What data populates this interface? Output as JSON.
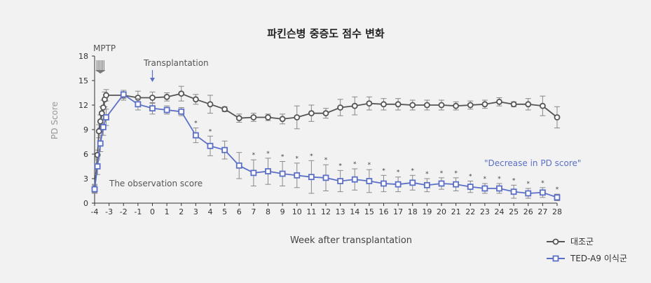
{
  "chart_data": {
    "type": "line",
    "title": "파킨슨병 중증도 점수 변화",
    "xlabel": "Week after transplantation",
    "ylabel": "PD Score",
    "ylim": [
      0,
      18
    ],
    "yticks": [
      0,
      3,
      6,
      9,
      12,
      15,
      18
    ],
    "xticks": [
      -4,
      -3,
      -2,
      -1,
      0,
      1,
      2,
      3,
      4,
      5,
      6,
      7,
      8,
      9,
      10,
      11,
      12,
      13,
      14,
      15,
      16,
      17,
      18,
      19,
      20,
      21,
      22,
      23,
      24,
      25,
      26,
      27,
      28
    ],
    "xlim": [
      -4,
      28
    ],
    "legend_position": "bottom-right",
    "annotations": {
      "mptp": "MPTP",
      "transplantation": "Transplantation",
      "observation": "The observation score",
      "decrease": "\"Decrease in PD score\""
    },
    "series": [
      {
        "name": "대조군",
        "color": "#555555",
        "marker": "circle",
        "x": [
          -4,
          -3.8,
          -3.7,
          -3.6,
          -3.5,
          -3.4,
          -3.3,
          -3.2,
          -2,
          -1,
          0,
          1,
          2,
          3,
          4,
          5,
          6,
          7,
          8,
          9,
          10,
          11,
          12,
          13,
          14,
          15,
          16,
          17,
          18,
          19,
          20,
          21,
          22,
          23,
          24,
          25,
          26,
          27,
          28
        ],
        "y": [
          1.8,
          5.9,
          8.8,
          10.0,
          11.0,
          11.7,
          12.7,
          13.2,
          13.2,
          12.9,
          12.9,
          13.0,
          13.4,
          12.7,
          12.1,
          11.5,
          10.4,
          10.5,
          10.5,
          10.3,
          10.5,
          11.0,
          11.0,
          11.7,
          11.9,
          12.2,
          12.1,
          12.1,
          12.0,
          12.0,
          12.0,
          11.9,
          12.0,
          12.1,
          12.4,
          12.1,
          12.1,
          11.9,
          10.5
        ],
        "err": [
          0.5,
          0.6,
          0.8,
          0.8,
          0.8,
          0.9,
          0.9,
          0.7,
          0.6,
          0.8,
          0.7,
          0.5,
          0.9,
          0.6,
          1.1,
          0.3,
          0.5,
          0.5,
          0.4,
          0.6,
          1.4,
          1.0,
          0.6,
          1.0,
          1.1,
          0.8,
          0.7,
          0.7,
          0.6,
          0.6,
          0.6,
          0.5,
          0.5,
          0.5,
          0.5,
          0.3,
          0.7,
          1.2,
          1.3
        ]
      },
      {
        "name": "TED-A9 이식군",
        "color": "#5b6fc7",
        "marker": "square",
        "x": [
          -4,
          -3.8,
          -3.6,
          -3.4,
          -3.2,
          -2,
          -1,
          0,
          1,
          2,
          3,
          4,
          5,
          6,
          7,
          8,
          9,
          10,
          11,
          12,
          13,
          14,
          15,
          16,
          17,
          18,
          19,
          20,
          21,
          22,
          23,
          24,
          25,
          26,
          27,
          28
        ],
        "y": [
          1.7,
          4.5,
          7.3,
          9.3,
          10.5,
          13.3,
          12.1,
          11.6,
          11.4,
          11.2,
          8.3,
          7.0,
          6.5,
          4.6,
          3.7,
          3.9,
          3.6,
          3.4,
          3.2,
          3.1,
          2.7,
          2.9,
          2.7,
          2.4,
          2.3,
          2.5,
          2.2,
          2.4,
          2.3,
          2.0,
          1.8,
          1.8,
          1.4,
          1.2,
          1.3,
          0.7
        ],
        "err": [
          0.5,
          1.0,
          1.0,
          1.0,
          1.0,
          0.5,
          0.7,
          0.7,
          0.5,
          0.5,
          0.9,
          1.2,
          1.1,
          1.6,
          1.6,
          1.6,
          1.5,
          1.5,
          2.0,
          1.6,
          1.3,
          1.3,
          1.4,
          1.0,
          0.9,
          0.9,
          0.8,
          0.7,
          0.8,
          0.7,
          0.6,
          0.6,
          0.8,
          0.6,
          0.6,
          0.4
        ],
        "significant_weeks": [
          3,
          4,
          7,
          8,
          9,
          10,
          11,
          12,
          13,
          14,
          15,
          16,
          17,
          18,
          19,
          20,
          21,
          22,
          23,
          24,
          25,
          26,
          27,
          28
        ]
      }
    ]
  }
}
